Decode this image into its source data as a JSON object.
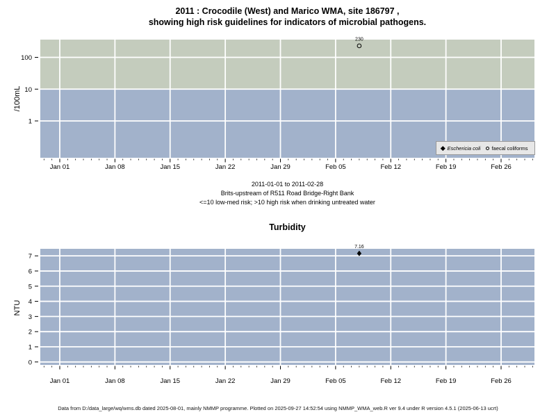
{
  "title": {
    "line1": "2011 : Crocodile (West) and Marico WMA, site 186797 ,",
    "line2": "showing high risk guidelines for indicators of microbial pathogens."
  },
  "caption": {
    "line1": "2011-01-01 to 2011-02-28",
    "line2": "Brits-upstream of R511 Road Bridge-Right Bank",
    "line3": "<=10 low-med risk; >10 high risk when drinking untreated water"
  },
  "footer": {
    "text": "Data from D:/data_large/wq/wms.db dated 2025-08-01, mainly NMMP programme. Plotted on 2025-09-27 14:52:54 using NMMP_WMA_web.R ver 9.4 under R version 4.5.1 (2025-06-13 ucrt)"
  },
  "colors": {
    "high_zone_green": "#c4ccbd",
    "low_zone_blue": "#a2b2cb",
    "gridline": "#ffffff",
    "legend_bg": "#e7e7e7",
    "legend_border": "#999999",
    "marker": "#000000"
  },
  "chart_data": [
    {
      "id": "microbial-pathogens",
      "type": "scatter",
      "ylabel": "/100mL",
      "yscale": "log10",
      "ytick_values": [
        100,
        10,
        1
      ],
      "ytick_labels": [
        "100",
        "10",
        "1"
      ],
      "ygrid": [
        100,
        10,
        1
      ],
      "xtick_days": [
        0,
        7,
        14,
        21,
        28,
        35,
        42,
        49,
        56
      ],
      "xtick_labels": [
        "Jan 01",
        "Jan 08",
        "Jan 15",
        "Jan 22",
        "Jan 29",
        "Feb 05",
        "Feb 12",
        "Feb 19",
        "Feb 26"
      ],
      "x_range": "2011-01-01 to 2011-02-28",
      "zones": [
        {
          "label": "high risk (>10)",
          "color": "#c4ccbd",
          "value_min": 10,
          "value_max": null
        },
        {
          "label": "low-med risk (<=10)",
          "color": "#a2b2cb",
          "value_min": null,
          "value_max": 10
        }
      ],
      "legend_position": "bottom-right",
      "series": [
        {
          "name": "Eschericia coli",
          "marker": "filled-diamond",
          "points": []
        },
        {
          "name": "faecal coliforms",
          "marker": "open-circle",
          "points": [
            {
              "day": 38,
              "value": 230,
              "label": "230"
            }
          ]
        }
      ]
    },
    {
      "id": "turbidity",
      "type": "scatter",
      "title": "Turbidity",
      "ylabel": "NTU",
      "yscale": "linear",
      "ytick_values": [
        7,
        6,
        5,
        4,
        3,
        2,
        1,
        0
      ],
      "ytick_labels": [
        "7",
        "6",
        "5",
        "4",
        "3",
        "2",
        "1",
        "0"
      ],
      "ygrid": [
        0,
        1,
        2,
        3,
        4,
        5,
        6,
        7
      ],
      "xtick_days": [
        0,
        7,
        14,
        21,
        28,
        35,
        42,
        49,
        56
      ],
      "xtick_labels": [
        "Jan 01",
        "Jan 08",
        "Jan 15",
        "Jan 22",
        "Jan 29",
        "Feb 05",
        "Feb 12",
        "Feb 19",
        "Feb 26"
      ],
      "x_range": "2011-01-01 to 2011-02-28",
      "zones": [
        {
          "label": "background",
          "color": "#a2b2cb",
          "value_min": null,
          "value_max": null
        }
      ],
      "series": [
        {
          "name": "Turbidity",
          "marker": "filled-diamond",
          "points": [
            {
              "day": 38,
              "value": 7.16,
              "label": "7.16"
            }
          ]
        }
      ]
    }
  ]
}
